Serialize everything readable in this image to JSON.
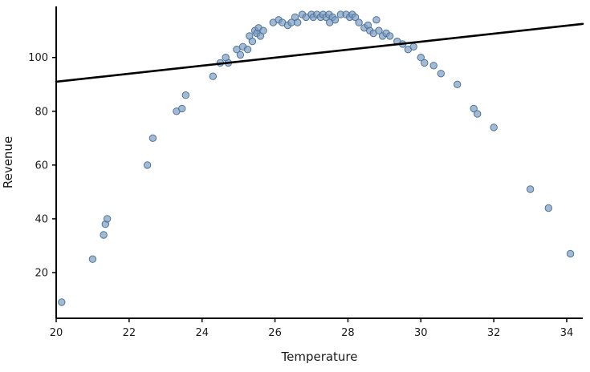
{
  "chart_data": {
    "type": "scatter",
    "title": "",
    "xlabel": "Temperature",
    "ylabel": "Revenue",
    "xlim": [
      20,
      34.44
    ],
    "ylim": [
      3,
      119
    ],
    "x_ticks": [
      20,
      22,
      24,
      26,
      28,
      30,
      32,
      34
    ],
    "y_ticks": [
      20,
      40,
      60,
      80,
      100
    ],
    "grid": false,
    "legend": "none",
    "marker_color": "#7b9cc2",
    "marker_edge_color": "#4f7399",
    "marker_opacity": 0.7,
    "line_color": "#000000",
    "points": [
      [
        20.15,
        9
      ],
      [
        21.0,
        25
      ],
      [
        21.3,
        34
      ],
      [
        21.35,
        38
      ],
      [
        21.4,
        40
      ],
      [
        22.5,
        60
      ],
      [
        22.65,
        70
      ],
      [
        23.3,
        80
      ],
      [
        23.45,
        81
      ],
      [
        23.55,
        86
      ],
      [
        24.3,
        93
      ],
      [
        24.5,
        98
      ],
      [
        24.65,
        100
      ],
      [
        24.72,
        98
      ],
      [
        24.95,
        103
      ],
      [
        25.05,
        101
      ],
      [
        25.12,
        104
      ],
      [
        25.25,
        103
      ],
      [
        25.3,
        108
      ],
      [
        25.38,
        106
      ],
      [
        25.45,
        110
      ],
      [
        25.5,
        109
      ],
      [
        25.55,
        111
      ],
      [
        25.6,
        108
      ],
      [
        25.68,
        110
      ],
      [
        25.95,
        113
      ],
      [
        26.1,
        114
      ],
      [
        26.2,
        113
      ],
      [
        26.35,
        112
      ],
      [
        26.45,
        113
      ],
      [
        26.55,
        115
      ],
      [
        26.62,
        113
      ],
      [
        26.75,
        116
      ],
      [
        26.85,
        115
      ],
      [
        27.0,
        116
      ],
      [
        27.05,
        115
      ],
      [
        27.15,
        116
      ],
      [
        27.25,
        115
      ],
      [
        27.32,
        116
      ],
      [
        27.4,
        115
      ],
      [
        27.48,
        116
      ],
      [
        27.5,
        113
      ],
      [
        27.58,
        115
      ],
      [
        27.65,
        114
      ],
      [
        27.8,
        116
      ],
      [
        27.95,
        116
      ],
      [
        28.05,
        115
      ],
      [
        28.12,
        116
      ],
      [
        28.2,
        115
      ],
      [
        28.3,
        113
      ],
      [
        28.45,
        111
      ],
      [
        28.55,
        112
      ],
      [
        28.6,
        110
      ],
      [
        28.7,
        109
      ],
      [
        28.78,
        114
      ],
      [
        28.85,
        110
      ],
      [
        28.95,
        108
      ],
      [
        29.05,
        109
      ],
      [
        29.15,
        108
      ],
      [
        29.35,
        106
      ],
      [
        29.5,
        105
      ],
      [
        29.65,
        103
      ],
      [
        29.8,
        104
      ],
      [
        30.0,
        100
      ],
      [
        30.1,
        98
      ],
      [
        30.35,
        97
      ],
      [
        30.55,
        94
      ],
      [
        31.0,
        90
      ],
      [
        31.45,
        81
      ],
      [
        31.55,
        79
      ],
      [
        32.0,
        74
      ],
      [
        33.0,
        51
      ],
      [
        33.5,
        44
      ],
      [
        34.1,
        27
      ]
    ],
    "trend_line": {
      "x": [
        20,
        34.44
      ],
      "y": [
        91,
        112.5
      ]
    }
  }
}
